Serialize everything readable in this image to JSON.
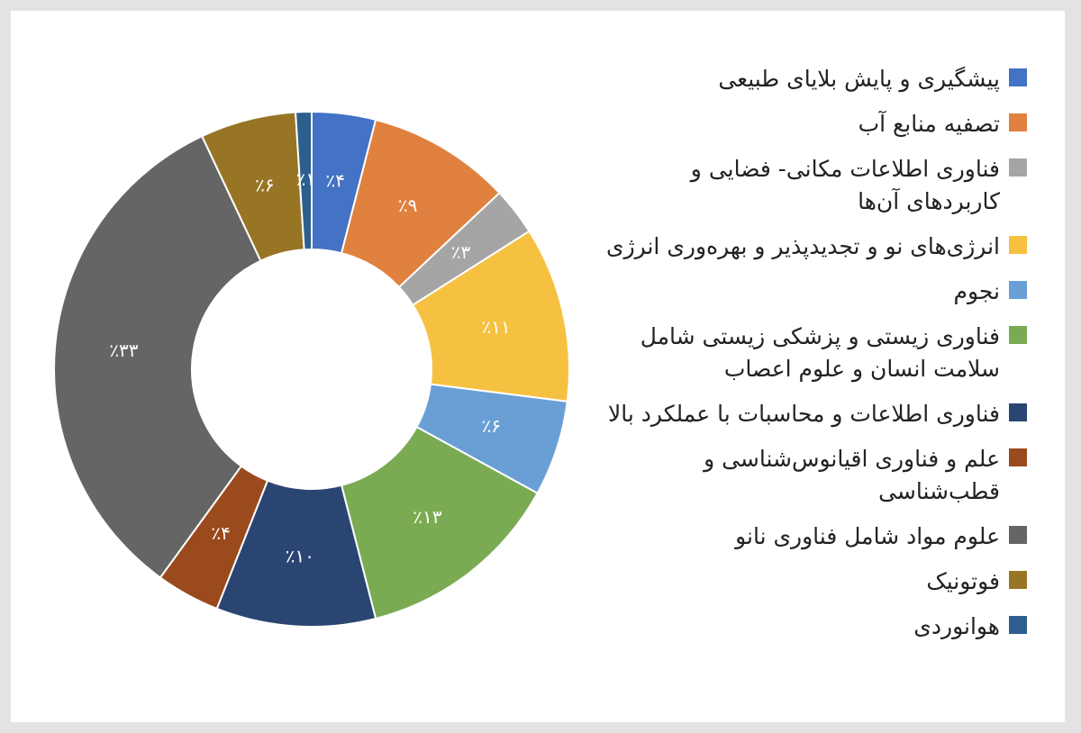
{
  "chart_data": {
    "type": "donut",
    "categories": [
      "پیشگیری و پایش بلایای طبیعی",
      "تصفیه منابع آب",
      "فناوری اطلاعات مکانی- فضایی و کاربردهای آن‌ها",
      "انرژی‌های نو و تجدیدپذیر و بهره‌وری انرژی",
      "نجوم",
      "فناوری زیستی و پزشکی زیستی شامل سلامت انسان و علوم اعصاب",
      "فناوری اطلاعات و محاسبات با عملکرد بالا",
      "علم و فناوری اقیانوس‌شناسی و قطب‌شناسی",
      "علوم مواد شامل فناوری نانو",
      "فوتونیک",
      "هوانوردی"
    ],
    "values": [
      4,
      9,
      3,
      11,
      6,
      13,
      10,
      4,
      33,
      6,
      1
    ],
    "value_labels": [
      "٪۴",
      "٪۹",
      "٪۳",
      "٪۱۱",
      "٪۶",
      "٪۱۳",
      "٪۱۰",
      "٪۴",
      "٪۳۳",
      "٪۶",
      "٪۱"
    ],
    "colors": [
      "#4472c4",
      "#e0813f",
      "#a5a5a5",
      "#f6c141",
      "#6a9fd6",
      "#7aab52",
      "#2b4572",
      "#9a4a1d",
      "#656565",
      "#987525",
      "#2d5f8e"
    ]
  }
}
